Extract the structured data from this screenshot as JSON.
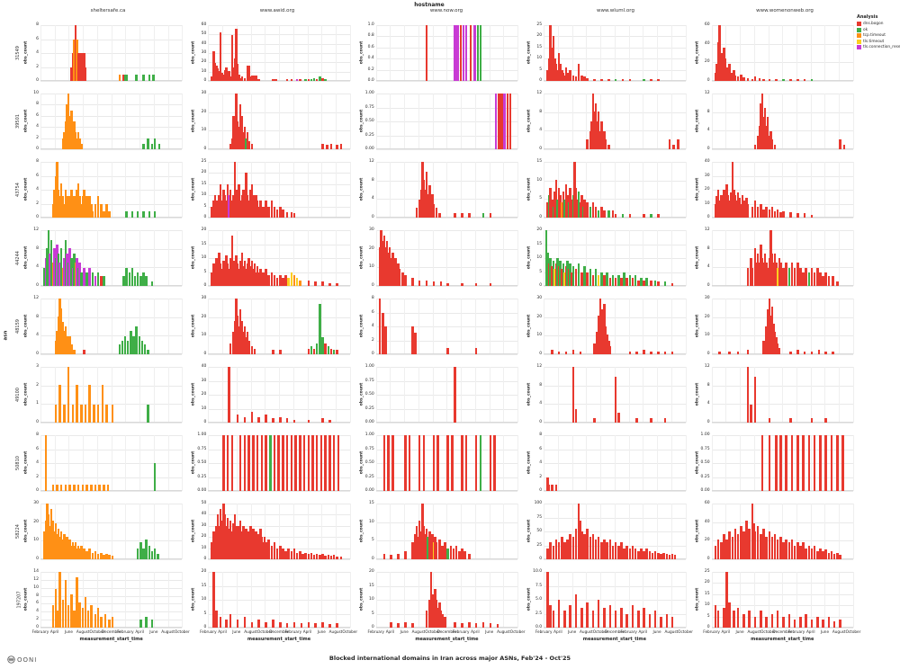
{
  "footer": {
    "logo_text": "OONI"
  },
  "chart_data": {
    "type": "bar",
    "title": "Blocked international domains in Iran across major ASNs, Feb'24 - Oct'25",
    "ylabel": "obs_count",
    "facet": {
      "rows_label": "asn",
      "cols_label": "hostname",
      "rows": [
        "31549",
        "39501",
        "43754",
        "44244",
        "48159",
        "49100",
        "50810",
        "58224",
        "197207"
      ],
      "cols": [
        "sheltersafe.ca",
        "www.awid.org",
        "www.now.org",
        "www.wluml.org",
        "www.womenonweb.org"
      ]
    },
    "x": {
      "label": "measurement_start_time",
      "ticks": [
        "February",
        "April",
        "June",
        "August",
        "October",
        "December",
        "February",
        "April",
        "June",
        "August",
        "October"
      ]
    },
    "legend": {
      "title": "Analysis",
      "items": [
        {
          "label": "dns.bogon",
          "color": "#e8392f"
        },
        {
          "label": "ok",
          "color": "#3fae47"
        },
        {
          "label": "tcp.timeout",
          "color": "#ff9015"
        },
        {
          "label": "tls.timeout",
          "color": "#fccf1f"
        },
        {
          "label": "tls.connection_reset",
          "color": "#c83bd4"
        }
      ]
    },
    "palette": {
      "r": "#e8392f",
      "g": "#3fae47",
      "o": "#ff9015",
      "y": "#fccf1f",
      "m": "#c83bd4"
    },
    "panels": [
      {
        "yt": [
          "0",
          "2",
          "4",
          "6",
          "8"
        ],
        "bars": "21,25,r;22,50,r;23,75,o;24,100,r;25,75,o;26,50,r;27,50,r;28,50,r;29,25,r;30,50,r;31,25,r;55,12,o;58,12,r;59,12,g;60,12,g;67,12,g;72,12,g;76,12,g;79,12,g"
      },
      {
        "yt": [
          "0",
          "10",
          "20",
          "30",
          "40",
          "50",
          "60"
        ],
        "bars": "2,8,r;3,53,r;4,33,r;5,28,r;6,22,r;7,18,r;8,87,r;9,15,r;10,12,r;11,20,r;12,25,r;13,10,r;14,18,r;15,8,r;16,83,r;17,25,r;18,40,r;19,93,r;20,30,r;21,12,r;22,5,r;23,8,r;25,5,r;27,27,r;28,27,r;29,8,r;30,10,r;31,10,r;32,10,r;33,10,r;35,3,r;45,3,r;47,3,r;55,3,r;58,3,r;62,3,m;64,3,r;68,3,g;70,3,r;72,3,g;74,5,g;76,3,r;78,8,g;80,5,r;82,3,g"
      },
      {
        "yt": [
          "0.0",
          "0.2",
          "0.4",
          "0.6",
          "0.8",
          "1.0"
        ],
        "bars": "35,100,r;55,100,m;57,100,m;59,100,r;61,100,m;63,100,m;66,100,r;69,100,m;71,100,g;73,100,g"
      },
      {
        "yt": [
          "0",
          "5",
          "10",
          "15",
          "20",
          "25"
        ],
        "bars": "2,20,r;3,40,r;4,100,r;5,60,r;6,80,r;7,40,r;8,30,r;9,20,r;10,50,r;11,30,r;12,20,r;13,15,r;14,10,r;15,25,r;16,15,r;17,10,r;18,20,r;20,10,r;22,8,r;24,30,r;26,10,r;28,8,r;30,5,r;35,4,r;40,4,r;45,4,r;50,4,g;55,4,r;60,4,r;70,4,g;75,4,r;80,4,r"
      },
      {
        "yt": [
          "0",
          "20",
          "40",
          "60"
        ],
        "bars": "2,15,r;3,30,r;4,70,r;5,100,r;6,50,r;7,35,r;8,60,r;9,40,r;10,25,r;11,20,r;12,30,r;13,15,r;14,10,r;15,20,r;16,10,r;18,8,r;20,12,r;22,6,r;25,5,r;28,4,r;30,8,r;33,5,r;36,4,r;40,3,r;45,3,r;50,3,g;55,3,r;60,3,r;65,3,r;70,3,g"
      },
      {
        "yt": [
          "0",
          "2",
          "4",
          "6",
          "8",
          "10"
        ],
        "bars": "15,20,o;16,30,o;17,50,o;18,80,o;19,100,o;20,60,o;21,70,o;22,40,o;23,50,o;24,30,o;25,20,o;26,30,o;27,20,o;28,10,o;72,10,g;75,20,g;78,10,g;80,20,g;83,10,g"
      },
      {
        "yt": [
          "0",
          "10",
          "20",
          "30"
        ],
        "bars": "15,10,r;16,20,r;17,60,r;18,30,r;19,100,r;20,50,r;21,40,r;22,80,r;23,60,r;24,30,r;25,40,r;26,20,g;27,30,r;28,15,r;30,10,r;80,10,r;83,8,r;86,10,r;90,8,r;93,10,r"
      },
      {
        "yt": [
          "0.00",
          "0.25",
          "0.50",
          "0.75",
          "1.00"
        ],
        "bars": "84,100,m;86,100,r;88,100,r;90,100,m;92,100,r;94,100,r"
      },
      {
        "yt": [
          "0",
          "4",
          "8",
          "12"
        ],
        "bars": "30,17,r;32,33,r;33,50,r;34,100,r;35,67,r;36,83,r;37,50,r;38,67,r;39,33,r;40,50,r;41,25,r;42,33,r;43,17,r;45,8,r;88,17,r;91,8,r;94,17,r"
      },
      {
        "yt": [
          "0",
          "4",
          "8",
          "12"
        ],
        "bars": "30,8,r;32,25,r;33,42,r;34,83,r;35,100,r;36,58,r;37,75,r;38,42,r;39,58,r;40,25,r;41,33,r;42,17,r;44,8,r;90,17,r;93,8,r"
      },
      {
        "yt": [
          "0",
          "2",
          "4",
          "6",
          "8"
        ],
        "bars": "8,25,o;9,50,o;10,75,o;11,100,o;12,50,o;13,38,o;14,62,o;15,38,o;16,25,o;17,50,o;18,38,o;19,25,o;20,38,o;21,50,o;22,25,o;23,38,o;24,25,o;25,50,o;26,62,o;27,38,o;28,25,o;29,38,o;30,50,o;31,25,o;32,38,o;33,25,o;34,38,o;35,25,o;36,12,o;38,25,o;40,38,o;42,25,o;44,12,o;46,25,o;48,12,o;60,12,g;64,12,g;68,12,g;72,12,g;76,12,g;80,12,g"
      },
      {
        "yt": [
          "0",
          "5",
          "10",
          "15",
          "20",
          "25"
        ],
        "bars": "2,20,r;3,30,r;4,40,r;5,30,r;6,20,r;7,40,r;8,60,r;9,30,r;10,50,r;11,40,r;12,30,r;13,60,r;14,40,m;15,50,r;16,30,r;17,40,r;18,100,r;19,50,r;20,40,r;21,60,r;22,30,r;23,40,r;24,50,r;25,30,r;26,80,r;27,40,r;28,30,r;29,50,r;30,60,r;31,40,r;32,30,r;33,40,r;34,30,r;35,20,r;36,30,r;38,20,r;40,30,r;42,20,r;44,30,r;46,20,r;48,15,r;50,20,r;52,15,r;55,10,r;58,10,r;60,8,r"
      },
      {
        "yt": [
          "0",
          "4",
          "8",
          "12"
        ],
        "bars": "28,17,r;30,33,r;31,50,r;32,100,r;33,67,r;34,50,r;35,83,r;36,42,r;37,58,r;38,33,r;39,42,r;40,25,r;42,17,r;44,8,r;55,8,r;60,8,r;65,8,r;75,8,g;80,8,r"
      },
      {
        "yt": [
          "0",
          "5",
          "10",
          "15"
        ],
        "bars": "2,27,r;3,40,g;4,53,r;5,33,r;6,20,g;7,47,r;8,67,r;9,33,g;10,53,r;11,40,r;12,27,o;13,47,r;14,33,g;15,60,r;16,40,r;17,27,g;18,53,r;19,33,r;20,40,g;21,100,r;22,53,r;23,33,r;24,47,g;25,27,r;26,40,r;27,20,g;28,33,r;30,27,r;32,20,g;34,27,r;36,20,r;38,13,g;40,20,r;42,13,r;45,13,g;48,13,r;50,7,r;55,7,g;60,7,r;70,7,r;75,7,g;80,7,r"
      },
      {
        "yt": [
          "0",
          "10",
          "20",
          "30",
          "40"
        ],
        "bars": "2,25,r;3,38,r;4,50,r;5,30,r;6,40,r;7,25,r;8,50,r;9,35,r;10,60,r;11,40,r;12,30,r;13,45,r;14,100,r;15,50,r;16,40,r;17,30,r;18,45,r;19,35,r;20,25,r;21,40,r;22,30,r;23,20,r;24,35,r;25,25,r;28,20,r;30,30,r;32,20,r;34,25,r;36,15,r;38,20,r;40,15,r;42,20,r;44,12,r;46,15,r;48,10,r;50,12,r;55,10,r;60,8,r;65,8,r;70,5,r"
      },
      {
        "yt": [
          "0",
          "4",
          "8",
          "12"
        ],
        "bars": "2,33,g;3,50,m;4,67,g;5,100,g;6,58,m;7,83,g;8,42,o;9,67,m;10,50,g;11,75,m;12,58,g;13,42,m;14,67,g;15,33,o;16,50,m;17,83,g;18,58,m;19,42,g;20,67,m;21,50,g;22,33,m;23,58,g;24,42,o;25,50,m;26,33,g;27,42,m;28,25,g;30,33,m;32,25,g;34,33,m;36,25,g;38,17,m;40,25,g;42,17,r;44,17,g;58,17,g;60,33,g;62,25,g;64,33,g;66,17,g;68,25,g;70,17,g;72,25,g;74,17,g;78,8,g"
      },
      {
        "yt": [
          "0",
          "5",
          "10",
          "15",
          "20"
        ],
        "bars": "2,25,r;3,40,r;4,30,r;5,50,r;6,35,r;7,60,r;8,40,r;9,30,r;10,45,r;11,35,r;12,55,r;13,40,r;14,30,r;15,50,r;16,90,r;17,45,r;18,35,r;19,55,r;20,40,r;21,30,r;22,45,r;23,60,r;24,35,r;25,45,r;26,30,r;27,40,r;28,50,r;29,35,r;30,45,r;31,30,r;32,40,r;33,25,r;34,35,r;35,25,r;36,30,r;38,25,r;40,30,r;42,20,r;44,25,r;46,20,r;48,15,r;50,20,r;52,15,r;54,20,r;56,15,y;58,25,y;60,20,o;62,15,y;64,10,o;70,10,r;75,8,r;80,8,r;85,5,r;90,5,r"
      },
      {
        "yt": [
          "0",
          "10",
          "20",
          "30"
        ],
        "bars": "2,70,r;3,100,r;4,80,r;5,90,r;6,70,r;7,80,r;8,60,r;9,70,r;10,50,r;11,60,r;12,40,r;13,50,r;14,35,r;15,40,r;16,30,r;18,25,r;20,20,r;25,15,r;30,10,r;35,10,r;40,8,r;45,8,r;50,5,r;60,5,r;70,5,r;80,5,r"
      },
      {
        "yt": [
          "0",
          "5",
          "10",
          "15",
          "20"
        ],
        "bars": "1,100,g;2,60,g;3,40,r;4,50,g;5,35,r;6,45,g;7,30,y;8,40,r;9,50,g;10,35,r;11,45,g;12,30,r;13,40,g;14,25,y;15,35,r;16,45,g;17,30,r;18,40,g;19,25,r;20,35,g;22,30,r;24,40,g;26,25,r;28,35,g;30,25,r;32,30,g;34,20,r;36,30,g;38,20,y;40,25,g;42,20,r;44,25,g;46,15,r;48,20,g;50,15,r;52,20,g;54,15,r;56,25,g;58,15,r;60,20,g;62,15,r;64,20,g;66,10,r;68,15,g;70,10,r;72,15,g;75,10,r;78,10,g;80,8,r;85,8,g;90,5,r"
      },
      {
        "yt": [
          "0",
          "4",
          "8",
          "12"
        ],
        "bars": "25,33,r;27,50,r;28,33,r;30,67,r;31,42,r;32,58,r;33,42,r;34,75,r;35,50,r;36,42,r;37,58,r;38,42,r;39,33,r;40,50,r;41,100,r;42,58,r;43,42,r;44,58,r;45,42,r;46,33,y;47,50,r;48,42,r;50,33,r;52,42,r;54,33,g;56,42,r;58,33,r;60,42,r;62,33,r;64,25,r;66,33,r;68,25,g;70,33,r;72,25,r;74,33,r;76,25,r;78,17,r;80,25,r;82,17,r;85,17,r;88,8,r"
      },
      {
        "yt": [
          "0",
          "4",
          "8",
          "12"
        ],
        "bars": "10,25,o;11,42,o;12,67,o;13,100,o;14,83,o;15,58,o;16,42,o;17,50,o;18,33,o;19,25,o;20,33,o;21,17,o;23,8,o;30,8,r;55,17,g;57,25,g;59,33,g;61,25,g;63,42,g;65,33,g;67,50,g;69,33,g;71,25,g;73,17,g;75,8,g"
      },
      {
        "yt": [
          "0",
          "10",
          "20",
          "30"
        ],
        "bars": "15,20,r;17,40,r;18,60,r;19,100,r;20,70,r;21,50,r;22,80,r;23,60,r;24,40,r;25,50,r;26,30,r;27,40,r;28,25,r;30,15,r;32,10,r;45,8,r;50,8,r;70,10,r;72,15,g;74,10,r;76,20,g;78,90,g;80,30,g;82,20,r;84,15,g;86,10,r;88,8,g;90,8,r"
      },
      {
        "yt": [
          "0",
          "2",
          "4",
          "6",
          "8"
        ],
        "bars": "2,100,r;4,75,r;6,50,r;25,50,r;27,38,r;50,12,r;70,12,r"
      },
      {
        "yt": [
          "0",
          "10",
          "20",
          "30"
        ],
        "bars": "5,8,r;10,5,r;15,5,r;20,8,r;25,5,r;35,20,r;37,40,r;38,70,r;39,100,r;40,80,r;41,60,r;42,90,r;43,50,r;44,35,r;45,25,r;46,15,r;60,5,r;65,5,r;70,8,r;75,5,r;80,5,r;85,5,r;90,5,r"
      },
      {
        "yt": [
          "0",
          "10",
          "20",
          "30"
        ],
        "bars": "5,5,r;12,5,r;18,5,r;25,8,r;36,25,r;38,50,r;39,80,r;40,100,r;41,70,r;42,85,r;43,55,r;44,40,r;45,30,r;46,20,r;47,12,r;55,5,r;60,8,r;65,5,r;70,5,r;75,8,r;80,5,r;85,5,r"
      },
      {
        "yt": [
          "0",
          "1",
          "2",
          "3"
        ],
        "bars": "10,33,o;13,67,o;16,33,o;19,100,o;22,33,o;25,67,o;28,33,o;31,33,o;34,67,o;37,33,o;40,33,o;43,67,o;46,33,o;50,33,o;75,33,g"
      },
      {
        "yt": [
          "0",
          "10",
          "20",
          "30",
          "40"
        ],
        "bars": "14,100,r;20,15,r;25,10,r;30,20,r;35,10,r;40,15,r;45,8,r;50,10,r;55,8,r;60,5,r;70,5,r;80,8,r;85,5,r"
      },
      {
        "yt": [
          "0.00",
          "0.25",
          "0.50",
          "0.75",
          "1.00"
        ],
        "bars": "55,100,r"
      },
      {
        "yt": [
          "0",
          "4",
          "8",
          "12"
        ],
        "bars": "20,100,r;22,25,r;35,8,r;50,83,r;52,17,r;65,8,r;75,8,r;85,8,r"
      },
      {
        "yt": [
          "0",
          "4",
          "8",
          "12"
        ],
        "bars": "25,100,r;27,33,r;30,83,r;40,8,r;55,8,r;70,8,r;80,8,r"
      },
      {
        "yt": [
          "0",
          "2",
          "4",
          "6",
          "8"
        ],
        "bars": "3,100,o;8,12,o;11,12,o;14,12,o;17,12,o;20,12,o;23,12,o;26,12,o;29,12,o;32,12,o;35,12,o;38,12,o;41,12,o;44,12,o;47,12,o;80,50,g"
      },
      {
        "yt": [
          "0.00",
          "0.25",
          "0.50",
          "0.75",
          "1.00"
        ],
        "bars": "10,100,r;13,100,r;16,100,r;22,100,r;25,100,r;28,100,r;31,100,r;34,100,r;37,100,r;40,100,r;43,100,g;46,100,r;49,100,r;52,100,r;55,100,r;58,100,r;61,100,r;64,100,r;67,100,r;70,100,r;73,100,r;76,100,r;79,100,r;82,100,r;85,100,r;88,100,r;91,100,r"
      },
      {
        "yt": [
          "0.00",
          "0.25",
          "0.50",
          "0.75",
          "1.00"
        ],
        "bars": "5,100,r;8,100,r;11,100,r;20,100,r;23,100,r;30,100,r;33,100,r;40,100,r;43,100,r;50,100,r;53,100,r;60,100,r;63,100,r;70,100,r;73,100,g;80,100,r;83,100,r"
      },
      {
        "yt": [
          "0",
          "2",
          "4",
          "6",
          "8"
        ],
        "bars": "2,25,r;3,12,r;5,12,r;8,12,r"
      },
      {
        "yt": [
          "0.00",
          "0.25",
          "0.50",
          "0.75",
          "1.00"
        ],
        "bars": "35,100,r;40,100,r;45,100,r;48,100,r;52,100,r;56,100,r;60,100,r;64,100,r;68,100,r;72,100,r;76,100,r;80,100,r;84,100,r;88,100,r;92,100,r"
      },
      {
        "yt": [
          "0",
          "10",
          "20",
          "30"
        ],
        "bars": "2,50,o;3,70,o;4,100,o;5,80,o;6,60,o;7,90,o;8,70,o;9,50,o;10,65,o;11,45,o;12,55,o;13,40,o;14,50,o;15,35,o;16,45,o;17,30,o;18,40,o;19,30,o;20,35,o;21,25,o;22,30,o;23,25,o;24,30,o;25,20,o;26,25,o;27,20,o;28,25,o;29,15,o;30,20,o;32,15,o;34,20,o;36,12,o;38,15,o;40,10,o;42,12,o;44,8,o;46,10,o;48,8,o;50,6,o;68,20,g;70,30,g;72,20,g;74,35,g;76,25,g;78,15,g;80,20,g;82,10,g"
      },
      {
        "yt": [
          "0",
          "10",
          "20",
          "30",
          "40",
          "50"
        ],
        "bars": "2,30,r;3,50,r;4,40,r;5,60,r;6,80,r;7,60,r;8,90,r;9,70,r;10,100,r;11,80,r;12,60,r;13,75,r;14,55,r;15,70,r;16,50,r;17,65,r;18,80,r;19,60,r;20,45,r;21,60,r;22,70,r;23,50,r;24,60,r;25,45,r;26,55,r;27,40,r;28,50,r;29,60,r;30,45,r;31,55,r;32,40,r;33,50,r;34,35,r;35,45,r;36,55,r;37,40,r;38,30,r;39,40,r;40,30,r;42,35,r;44,25,r;46,30,r;48,20,r;50,25,r;52,20,r;54,15,r;56,20,r;58,15,r;60,20,r;62,12,r;64,15,r;66,10,r;68,12,r;70,10,r;72,12,r;74,8,r;76,10,r;78,8,r;80,10,r;82,6,r;84,8,r;86,6,r;88,8,r;90,5,r;93,5,r"
      },
      {
        "yt": [
          "0",
          "5",
          "10",
          "15"
        ],
        "bars": "5,10,r;10,8,r;15,10,r;20,15,r;25,30,r;27,45,r;28,60,r;29,40,r;30,70,r;31,50,r;32,100,r;33,60,r;34,45,r;35,55,r;36,40,g;37,50,r;38,35,r;39,45,r;40,30,y;41,40,r;42,30,r;44,35,r;46,25,r;48,30,r;50,20,g;52,25,r;54,20,r;56,25,r;58,15,r;60,20,r;62,15,r;65,10,r"
      },
      {
        "yt": [
          "0",
          "25",
          "50",
          "75",
          "100"
        ],
        "bars": "2,20,r;4,30,r;6,25,r;8,35,r;10,30,r;12,40,r;14,30,r;16,35,r;18,45,r;20,40,r;22,55,r;24,100,r;25,70,r;26,50,r;28,45,r;30,55,r;32,40,r;34,45,r;36,35,r;38,40,r;40,30,r;42,35,r;44,30,r;46,35,r;48,25,r;50,30,r;52,25,r;54,30,r;56,20,r;58,25,r;60,20,r;62,25,r;64,20,r;66,15,r;68,20,r;70,15,r;72,20,r;74,15,r;76,12,r;78,15,r;80,12,r;82,10,r;84,12,r;86,10,r;88,8,r;90,10,r;92,8,r"
      },
      {
        "yt": [
          "0",
          "20",
          "40",
          "60"
        ],
        "bars": "2,25,r;4,35,r;6,30,r;8,45,r;10,35,r;12,50,r;14,40,r;16,55,r;18,45,r;20,60,r;22,50,r;24,70,r;26,55,r;28,100,r;29,65,r;30,50,r;32,60,r;34,45,r;36,55,r;38,40,r;40,50,r;42,40,r;44,45,r;46,35,r;48,40,r;50,30,r;52,35,r;54,30,r;56,35,r;58,25,r;60,30,r;62,25,r;64,30,r;66,20,r;68,25,r;70,20,r;72,25,r;74,15,r;76,20,r;78,15,r;80,18,r;82,12,r;84,15,r;86,10,r;88,12,r;90,8,r"
      },
      {
        "yt": [
          "0",
          "2",
          "4",
          "6",
          "8",
          "10",
          "12",
          "14"
        ],
        "bars": "8,40,o;10,70,o;11,30,o;13,100,o;15,50,o;17,85,o;19,40,o;21,60,o;23,30,o;25,90,o;27,45,o;29,35,o;31,55,o;33,30,o;35,40,o;38,25,o;40,35,o;42,20,o;45,25,o;48,15,o;50,20,o;70,15,g;74,20,g;78,15,g"
      },
      {
        "yt": [
          "0",
          "5",
          "10",
          "15",
          "20"
        ],
        "bars": "3,100,r;5,30,r;8,20,r;12,15,r;15,25,r;20,15,r;25,20,r;30,10,r;35,15,r;40,10,r;45,15,r;50,10,r;55,8,r;60,10,r;65,8,r;70,10,r;75,8,r;80,10,r;85,6,r;90,8,r"
      },
      {
        "yt": [
          "0",
          "5",
          "10",
          "15",
          "20"
        ],
        "bars": "10,10,r;15,8,r;20,10,r;25,8,r;35,30,r;37,50,r;38,100,r;39,60,r;40,45,r;41,70,r;42,50,r;43,35,r;44,45,r;45,30,r;46,25,r;48,20,r;55,10,r;60,8,r;65,10,r;70,8,r;75,10,r;80,8,r;85,6,r"
      },
      {
        "yt": [
          "0.0",
          "2.5",
          "5.0",
          "7.5",
          "10.0"
        ],
        "bars": "2,100,r;4,40,r;6,30,r;10,50,r;14,30,r;18,40,r;22,60,r;26,35,r;30,45,r;34,30,r;38,50,r;42,35,r;46,40,r;50,30,r;54,35,r;58,25,r;62,40,r;66,30,r;70,35,r;74,25,r;78,30,r;82,20,r;86,25,r;90,20,r"
      },
      {
        "yt": [
          "0",
          "5",
          "10",
          "15",
          "20",
          "25"
        ],
        "bars": "2,40,r;4,30,r;8,35,r;10,100,r;12,45,r;15,30,r;18,35,r;22,25,r;26,30,r;30,20,r;34,30,r;38,20,r;42,25,r;46,30,r;50,20,r;54,25,r;58,15,r;62,20,r;66,25,r;70,15,r;74,20,r;78,15,r;82,20,r;86,12,r;90,15,r"
      }
    ]
  }
}
